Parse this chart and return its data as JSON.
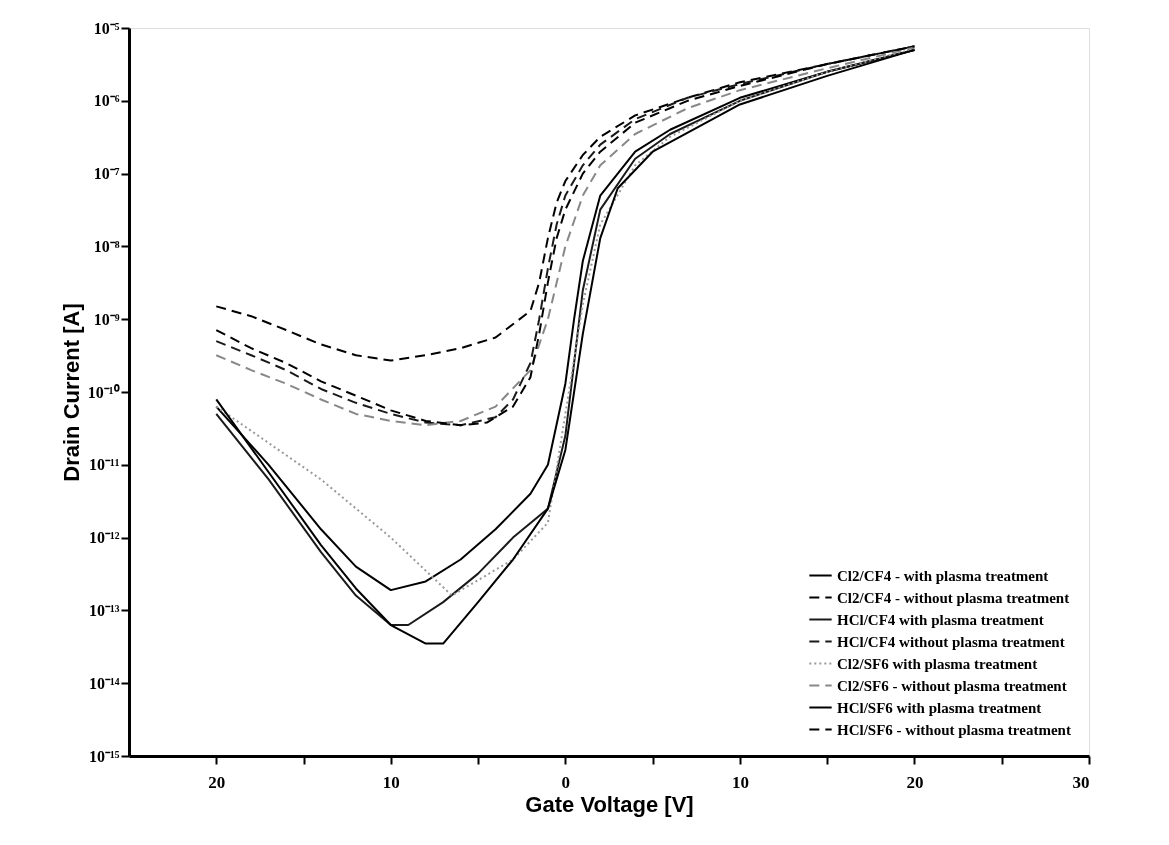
{
  "chart_data": {
    "type": "line",
    "xlabel": "Gate Voltage [V]",
    "ylabel": "Drain Current [A]",
    "log": "y",
    "grid": false,
    "legend": "bottom right",
    "xlim": [
      -25,
      30
    ],
    "xticks": [
      {
        "value": -20,
        "label": "20"
      },
      {
        "value": -15,
        "label": null
      },
      {
        "value": -10,
        "label": "10"
      },
      {
        "value": -5,
        "label": null
      },
      0,
      {
        "value": 5,
        "label": null
      },
      10,
      {
        "value": 15,
        "label": null
      },
      20,
      {
        "value": 25,
        "label": null
      },
      30
    ],
    "ylim": [
      1e-15,
      1e-05
    ],
    "yticks": [
      {
        "value": 1e-15,
        "label": "10⁻¹⁵"
      },
      {
        "value": 1e-14,
        "label": "10⁻¹⁴"
      },
      {
        "value": 1e-13,
        "label": "10⁻¹³"
      },
      {
        "value": 1e-12,
        "label": "10⁻¹²"
      },
      {
        "value": 1e-11,
        "label": "10⁻¹¹"
      },
      {
        "value": 1e-10,
        "label": "10⁻¹⁰"
      },
      {
        "value": 1e-09,
        "label": "10⁻⁹"
      },
      {
        "value": 1e-08,
        "label": "10⁻⁸"
      },
      {
        "value": 1e-07,
        "label": "10⁻⁷"
      },
      {
        "value": 1e-06,
        "label": "10⁻⁶"
      },
      {
        "value": 1e-05,
        "label": "10⁻⁵"
      }
    ],
    "series": [
      {
        "name": "Cl2/CF4 - with plasma treatment",
        "color": "#000000",
        "line_style": "solid",
        "x": [
          -20,
          -17,
          -14,
          -12,
          -10,
          -8,
          -6,
          -4,
          -2,
          -1,
          0,
          0.5,
          1,
          2,
          4,
          6,
          10,
          15,
          20
        ],
        "values": [
          6.3e-11,
          1e-11,
          1.3e-12,
          4e-13,
          1.9e-13,
          2.5e-13,
          5e-13,
          1.3e-12,
          4e-12,
          1e-11,
          1.3e-10,
          1e-09,
          6.3e-09,
          5e-08,
          2e-07,
          4e-07,
          1.1e-06,
          2.5e-06,
          5e-06
        ]
      },
      {
        "name": "Cl2/CF4 - without plasma treatment",
        "color": "#000000",
        "line_style": "dashed",
        "x": [
          -20,
          -18,
          -16,
          -14,
          -12,
          -10,
          -8,
          -6,
          -4,
          -2,
          -1.5,
          -1,
          -0.5,
          0,
          1,
          2,
          4,
          7,
          10,
          15,
          20
        ],
        "values": [
          1.5e-09,
          1.1e-09,
          7.1e-10,
          4.5e-10,
          3.2e-10,
          2.7e-10,
          3.2e-10,
          4e-10,
          5.6e-10,
          1.3e-09,
          3.2e-09,
          1.3e-08,
          4e-08,
          7.9e-08,
          1.8e-07,
          3.2e-07,
          6.3e-07,
          1.1e-06,
          1.8e-06,
          3.2e-06,
          5.6e-06
        ]
      },
      {
        "name": "HCl/CF4  with plasma treatment",
        "color": "#1a1a1a",
        "line_style": "solid",
        "x": [
          -20,
          -17,
          -14,
          -12,
          -10,
          -9,
          -7,
          -5,
          -3,
          -1,
          0,
          0.5,
          1,
          2,
          4,
          6,
          10,
          15,
          20
        ],
        "values": [
          5e-11,
          6.3e-12,
          6.3e-13,
          1.6e-13,
          6.3e-14,
          6.3e-14,
          1.3e-13,
          3.2e-13,
          1e-12,
          2.5e-12,
          2.5e-11,
          2.5e-10,
          2.5e-09,
          3.2e-08,
          1.6e-07,
          3.5e-07,
          1e-06,
          2.5e-06,
          5e-06
        ]
      },
      {
        "name": "HCl/CF4  without plasma treatment",
        "color": "#1a1a1a",
        "line_style": "dashed",
        "x": [
          -20,
          -18,
          -16,
          -14,
          -12,
          -10,
          -8,
          -6,
          -4,
          -3,
          -2,
          -1.5,
          -1,
          -0.5,
          0,
          1,
          2,
          4,
          7,
          10,
          15,
          20
        ],
        "values": [
          5e-10,
          3.2e-10,
          2e-10,
          1.1e-10,
          7.1e-11,
          5e-11,
          3.8e-11,
          3.5e-11,
          4.5e-11,
          7.9e-11,
          2.5e-10,
          1e-09,
          5e-09,
          2e-08,
          5e-08,
          1.3e-07,
          2.5e-07,
          5.6e-07,
          1.1e-06,
          1.7e-06,
          3.2e-06,
          5.6e-06
        ]
      },
      {
        "name": "Cl2/SF6  with plasma treatment",
        "color": "#999999",
        "line_style": "dotted",
        "x": [
          -20,
          -14,
          -10,
          -6.5,
          -3,
          -1,
          0,
          1,
          2,
          4,
          6,
          10,
          15,
          20
        ],
        "values": [
          6.3e-11,
          6.3e-12,
          1e-12,
          1.6e-13,
          5e-13,
          1.6e-12,
          5e-11,
          1.6e-09,
          2e-08,
          1.3e-07,
          3.2e-07,
          1e-06,
          2.5e-06,
          5.2e-06
        ]
      },
      {
        "name": "Cl2/SF6 - without plasma treatment",
        "color": "#888888",
        "line_style": "dashed",
        "x": [
          -20,
          -18,
          -16,
          -14,
          -12,
          -10,
          -8,
          -6,
          -4,
          -2,
          -1,
          0,
          1,
          2,
          4,
          7,
          10,
          15,
          20
        ],
        "values": [
          3.2e-10,
          2e-10,
          1.3e-10,
          7.9e-11,
          5e-11,
          4e-11,
          3.5e-11,
          4e-11,
          6.3e-11,
          2e-10,
          1e-09,
          1e-08,
          5e-08,
          1.3e-07,
          3.5e-07,
          7.9e-07,
          1.4e-06,
          2.8e-06,
          5.4e-06
        ]
      },
      {
        "name": "HCl/SF6   with plasma treatment",
        "color": "#000000",
        "line_style": "solid",
        "x": [
          -20,
          -17,
          -14,
          -12,
          -10,
          -8,
          -7,
          -5,
          -3,
          -1,
          0,
          0.5,
          1,
          2,
          3,
          5,
          10,
          15,
          20
        ],
        "values": [
          7.9e-11,
          7.9e-12,
          7.9e-13,
          2e-13,
          6.3e-14,
          3.5e-14,
          3.5e-14,
          1.3e-13,
          5e-13,
          2.5e-12,
          1.6e-11,
          1e-10,
          6.3e-10,
          1.3e-08,
          6.3e-08,
          2e-07,
          8.9e-07,
          2.2e-06,
          5e-06
        ]
      },
      {
        "name": "HCl/SF6 - without plasma treatment",
        "color": "#000000",
        "line_style": "dashed",
        "x": [
          -20,
          -18,
          -16,
          -14,
          -12,
          -10,
          -8,
          -6,
          -4.5,
          -3,
          -2,
          -1.5,
          -1,
          -0.5,
          0,
          1,
          2,
          4,
          7,
          10,
          15,
          20
        ],
        "values": [
          7.1e-10,
          4e-10,
          2.5e-10,
          1.4e-10,
          8.9e-11,
          5.6e-11,
          4e-11,
          3.5e-11,
          3.8e-11,
          6.3e-11,
          1.6e-10,
          6.3e-10,
          3.2e-09,
          1.3e-08,
          3.2e-08,
          1e-07,
          2e-07,
          5e-07,
          1e-06,
          1.6e-06,
          3.2e-06,
          5.6e-06
        ]
      }
    ]
  }
}
